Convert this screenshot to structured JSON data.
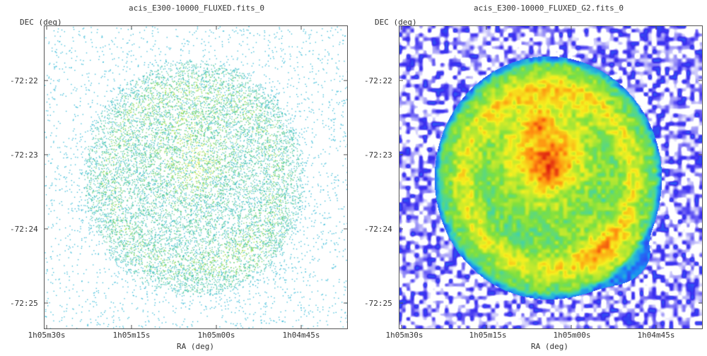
{
  "chart_data": [
    {
      "type": "heatmap",
      "title": "acis_E300-10000_FLUXED.fits_0",
      "xlabel": "RA (deg)",
      "ylabel": "DEC (deg)",
      "x_ticks": [
        "1h05m30s",
        "1h05m15s",
        "1h05m00s",
        "1h04m45s"
      ],
      "y_ticks": [
        "-72:22",
        "-72:23",
        "-72:24",
        "-72:25"
      ],
      "colormap": [
        "#ffffff",
        "#2fb8d8",
        "#4cc7a6",
        "#8fdc3e",
        "#d9e830"
      ],
      "grid": false
    },
    {
      "type": "heatmap",
      "title": "acis_E300-10000_FLUXED_G2.fits_0",
      "xlabel": "RA (deg)",
      "ylabel": "DEC (deg)",
      "x_ticks": [
        "1h05m30s",
        "1h05m15s",
        "1h05m00s",
        "1h04m45s"
      ],
      "y_ticks": [
        "-72:22",
        "-72:23",
        "-72:24",
        "-72:25"
      ],
      "colormap": [
        "#ffffff",
        "#3a2cf0",
        "#1a8cf5",
        "#35d0c0",
        "#7fe040",
        "#f6f020",
        "#ff8a10",
        "#d81010"
      ],
      "grid": false
    }
  ]
}
